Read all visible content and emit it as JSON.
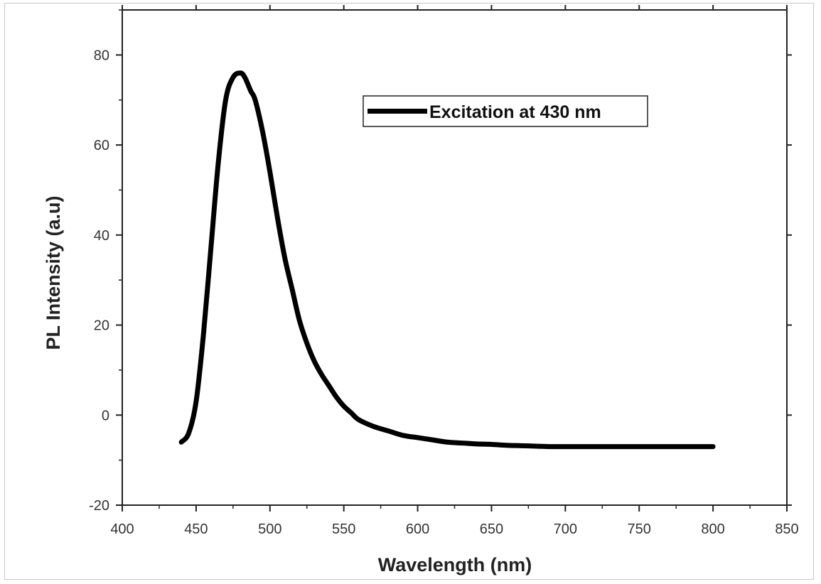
{
  "chart_data": {
    "type": "line",
    "xlabel": "Wavelength (nm)",
    "ylabel": "PL Intensity (a.u)",
    "xlim": [
      400,
      850
    ],
    "ylim": [
      -20,
      90
    ],
    "x_ticks": [
      400,
      450,
      500,
      550,
      600,
      650,
      700,
      750,
      800,
      850
    ],
    "y_ticks": [
      -20,
      0,
      20,
      40,
      60,
      80
    ],
    "x_tick_labels": [
      "400",
      "450",
      "500",
      "550",
      "600",
      "650",
      "700",
      "750",
      "800",
      "850"
    ],
    "y_tick_labels": [
      "-20",
      "0",
      "20",
      "40",
      "60",
      "80"
    ],
    "grid": false,
    "legend_position": "top-right",
    "line_color": "#000000",
    "series": [
      {
        "name": "Excitation at 430 nm",
        "x": [
          440,
          445,
          450,
          455,
          460,
          465,
          470,
          475,
          480,
          483,
          487,
          490,
          495,
          500,
          505,
          510,
          515,
          520,
          525,
          530,
          535,
          540,
          545,
          550,
          555,
          560,
          570,
          580,
          590,
          600,
          610,
          620,
          630,
          640,
          650,
          660,
          670,
          680,
          690,
          700,
          720,
          740,
          760,
          780,
          800
        ],
        "y": [
          -6,
          -4,
          3,
          18,
          37,
          56,
          70,
          75,
          76,
          75,
          72,
          70,
          63,
          54,
          44,
          35,
          28,
          21,
          16,
          12,
          9,
          6.5,
          4,
          2,
          0.5,
          -1,
          -2.5,
          -3.5,
          -4.5,
          -5,
          -5.5,
          -6,
          -6.2,
          -6.4,
          -6.5,
          -6.7,
          -6.8,
          -6.9,
          -7,
          -7,
          -7,
          -7,
          -7,
          -7,
          -7
        ]
      }
    ]
  }
}
